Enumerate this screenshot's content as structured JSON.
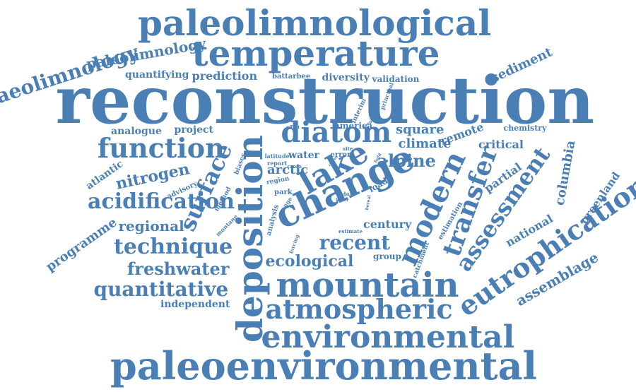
{
  "color": "#4a7fb5",
  "words": [
    {
      "text": "reconstruction"
    },
    {
      "text": "paleoenvironmental"
    },
    {
      "text": "paleolimnological"
    },
    {
      "text": "temperature"
    },
    {
      "text": "environmental"
    },
    {
      "text": "deposition"
    },
    {
      "text": "mountain"
    },
    {
      "text": "change"
    },
    {
      "text": "eutrophication"
    },
    {
      "text": "atmospheric"
    },
    {
      "text": "diatom"
    },
    {
      "text": "modern"
    },
    {
      "text": "lake"
    },
    {
      "text": "transfer"
    },
    {
      "text": "surface"
    },
    {
      "text": "function"
    },
    {
      "text": "assessment"
    },
    {
      "text": "acidification"
    },
    {
      "text": "technique"
    },
    {
      "text": "quantitative"
    },
    {
      "text": "palaeolimnology"
    },
    {
      "text": "paleolimnology"
    },
    {
      "text": "freshwater"
    },
    {
      "text": "recent"
    },
    {
      "text": "ecological"
    },
    {
      "text": "assemblage"
    },
    {
      "text": "nitrogen"
    },
    {
      "text": "alpine"
    },
    {
      "text": "columbia"
    },
    {
      "text": "sediment"
    },
    {
      "text": "national"
    },
    {
      "text": "greenland"
    },
    {
      "text": "programme"
    },
    {
      "text": "regional"
    },
    {
      "text": "arctic"
    },
    {
      "text": "square"
    },
    {
      "text": "climate"
    },
    {
      "text": "century"
    },
    {
      "text": "critical"
    },
    {
      "text": "remote"
    },
    {
      "text": "partial"
    },
    {
      "text": "independent"
    },
    {
      "text": "prediction"
    },
    {
      "text": "quantifying"
    },
    {
      "text": "project"
    },
    {
      "text": "analogue"
    },
    {
      "text": "atlantic"
    },
    {
      "text": "diversity"
    },
    {
      "text": "validation"
    },
    {
      "text": "america"
    },
    {
      "text": "water"
    },
    {
      "text": "chemistry"
    },
    {
      "text": "estimation"
    },
    {
      "text": "group"
    },
    {
      "text": "battarbee"
    },
    {
      "text": "advisory"
    },
    {
      "text": "analysis"
    },
    {
      "text": "park"
    },
    {
      "text": "error"
    },
    {
      "text": "catchment"
    },
    {
      "text": "load"
    },
    {
      "text": "region"
    },
    {
      "text": "report"
    },
    {
      "text": "method"
    },
    {
      "text": "latitude"
    },
    {
      "text": "biases"
    },
    {
      "text": "montane"
    },
    {
      "text": "data"
    },
    {
      "text": "range"
    },
    {
      "text": "interim"
    },
    {
      "text": "principal"
    },
    {
      "text": "estimate"
    },
    {
      "text": "forcing"
    },
    {
      "text": "site"
    },
    {
      "text": "effort"
    },
    {
      "text": "cross"
    },
    {
      "text": "boreal"
    },
    {
      "text": "lower"
    },
    {
      "text": "deep"
    },
    {
      "text": "cover"
    },
    {
      "text": "field"
    }
  ]
}
